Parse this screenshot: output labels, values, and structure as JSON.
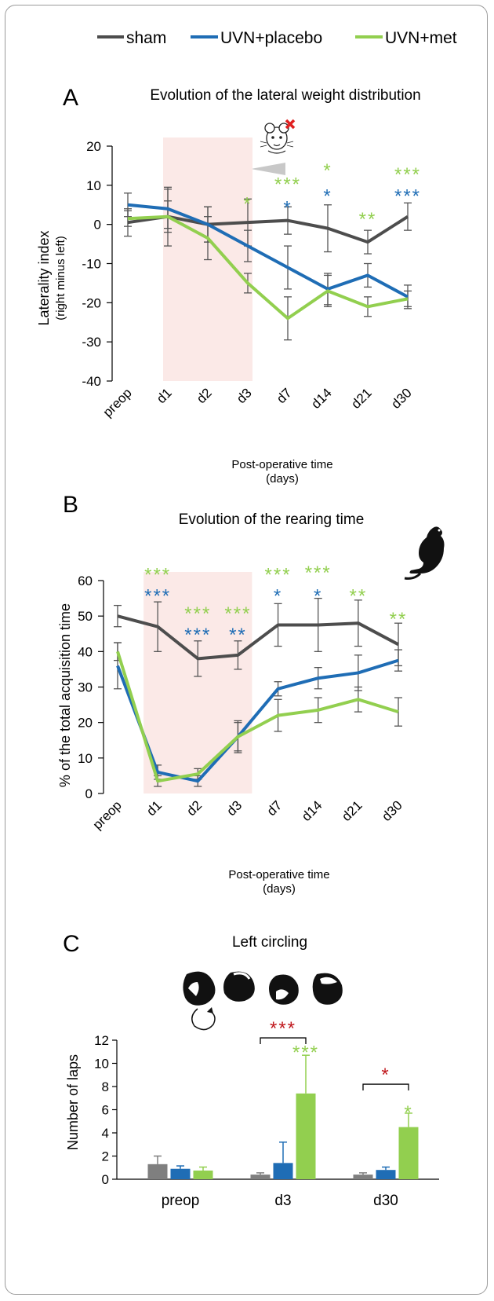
{
  "colors": {
    "sham": "#4d4d4d",
    "placebo": "#1f6db5",
    "met": "#92cf4f",
    "red_star": "#c0191e",
    "shade": "#fbe9e7"
  },
  "legend": [
    {
      "key": "sham",
      "label": "sham"
    },
    {
      "key": "placebo",
      "label": "UVN+placebo"
    },
    {
      "key": "met",
      "label": "UVN+met"
    }
  ],
  "chart_data": [
    {
      "id": "A",
      "type": "line",
      "panel": "A",
      "title": "Evolution of the lateral weight distribution",
      "ylabel": "Laterality index",
      "ylabel_sub": "(right minus left)",
      "xlabel": "Post-operative time",
      "xlabel_sub": "(days)",
      "categories": [
        "preop",
        "d1",
        "d2",
        "d3",
        "d7",
        "d14",
        "d21",
        "d30"
      ],
      "ylim": [
        -40,
        20
      ],
      "yticks": [
        20,
        10,
        0,
        -10,
        -20,
        -30,
        -40
      ],
      "shaded_range": [
        "d1",
        "d3"
      ],
      "series": [
        {
          "key": "sham",
          "name": "sham",
          "values": [
            0.5,
            2,
            0,
            0.5,
            1,
            -1,
            -4.5,
            2
          ],
          "err": [
            3.5,
            7.5,
            4.5,
            6,
            3.5,
            6,
            3,
            3.5
          ]
        },
        {
          "key": "placebo",
          "name": "UVN+placebo",
          "values": [
            5,
            4,
            0,
            -5.5,
            -11,
            -16.5,
            -13,
            -18.5
          ],
          "err": [
            3,
            5,
            4.5,
            4,
            5.5,
            4,
            3,
            3
          ]
        },
        {
          "key": "met",
          "name": "UVN+met",
          "values": [
            1.5,
            2,
            -3.5,
            -15,
            -24,
            -17,
            -21,
            -19
          ],
          "err": [
            2,
            4,
            5.5,
            2.5,
            5.5,
            4,
            2.5,
            2
          ]
        }
      ],
      "annotations": [
        {
          "cat": "d3",
          "key": "met",
          "stars": "*",
          "value": 6.5
        },
        {
          "cat": "d7",
          "key": "met",
          "stars": "***",
          "value": 11.5
        },
        {
          "cat": "d7",
          "key": "placebo",
          "stars": "*",
          "value": 5.5
        },
        {
          "cat": "d14",
          "key": "met",
          "stars": "*",
          "value": 15
        },
        {
          "cat": "d14",
          "key": "placebo",
          "stars": "*",
          "value": 8.5
        },
        {
          "cat": "d21",
          "key": "met",
          "stars": "**",
          "value": 2.5
        },
        {
          "cat": "d30",
          "key": "met",
          "stars": "***",
          "value": 14
        },
        {
          "cat": "d30",
          "key": "placebo",
          "stars": "***",
          "value": 8.5
        }
      ]
    },
    {
      "id": "B",
      "type": "line",
      "panel": "B",
      "title": "Evolution of the rearing time",
      "ylabel": "% of the total acquisition time",
      "xlabel": "Post-operative time",
      "xlabel_sub": "(days)",
      "categories": [
        "preop",
        "d1",
        "d2",
        "d3",
        "d7",
        "d14",
        "d21",
        "d30"
      ],
      "ylim": [
        0,
        60
      ],
      "yticks": [
        60,
        50,
        40,
        30,
        20,
        10,
        0
      ],
      "shaded_range": [
        "d1",
        "d3"
      ],
      "series": [
        {
          "key": "sham",
          "name": "sham",
          "values": [
            50,
            47,
            38,
            39,
            47.5,
            47.5,
            48,
            42
          ],
          "err": [
            3,
            7,
            5,
            4,
            6,
            7.5,
            6.5,
            6
          ]
        },
        {
          "key": "placebo",
          "name": "UVN+placebo",
          "values": [
            36,
            6,
            3.5,
            16,
            29.5,
            32.5,
            34,
            37.5
          ],
          "err": [
            6.5,
            2,
            1.5,
            4.5,
            2,
            3,
            5,
            3
          ]
        },
        {
          "key": "met",
          "name": "UVN+met",
          "values": [
            40,
            3.5,
            5.5,
            16,
            22,
            23.5,
            26.5,
            23
          ],
          "err": [
            2.5,
            1.5,
            1.5,
            4,
            4.5,
            3.5,
            3.5,
            4
          ]
        }
      ],
      "annotations": [
        {
          "cat": "d1",
          "key": "met",
          "stars": "***",
          "value": 63
        },
        {
          "cat": "d1",
          "key": "placebo",
          "stars": "***",
          "value": 57
        },
        {
          "cat": "d2",
          "key": "met",
          "stars": "***",
          "value": 52
        },
        {
          "cat": "d2",
          "key": "placebo",
          "stars": "***",
          "value": 46
        },
        {
          "cat": "d3",
          "key": "met",
          "stars": "***",
          "value": 52
        },
        {
          "cat": "d3",
          "key": "placebo",
          "stars": "**",
          "value": 46
        },
        {
          "cat": "d7",
          "key": "met",
          "stars": "***",
          "value": 63
        },
        {
          "cat": "d7",
          "key": "placebo",
          "stars": "*",
          "value": 57
        },
        {
          "cat": "d14",
          "key": "met",
          "stars": "***",
          "value": 63.5
        },
        {
          "cat": "d14",
          "key": "placebo",
          "stars": "*",
          "value": 57
        },
        {
          "cat": "d21",
          "key": "met",
          "stars": "**",
          "value": 57
        },
        {
          "cat": "d30",
          "key": "met",
          "stars": "**",
          "value": 50.5
        }
      ]
    },
    {
      "id": "C",
      "type": "bar",
      "panel": "C",
      "title": "Left circling",
      "ylabel": "Number of laps",
      "categories": [
        "preop",
        "d3",
        "d30"
      ],
      "ylim": [
        0,
        12
      ],
      "yticks": [
        12,
        10,
        8,
        6,
        4,
        2,
        0
      ],
      "series": [
        {
          "key": "sham",
          "name": "sham",
          "values": [
            1.3,
            0.4,
            0.4
          ],
          "err": [
            0.7,
            0.15,
            0.15
          ]
        },
        {
          "key": "placebo",
          "name": "UVN+placebo",
          "values": [
            0.9,
            1.4,
            0.8
          ],
          "err": [
            0.25,
            1.8,
            0.25
          ]
        },
        {
          "key": "met",
          "name": "UVN+met",
          "values": [
            0.75,
            7.4,
            4.5
          ],
          "err": [
            0.3,
            3.3,
            1.2
          ]
        }
      ],
      "brackets": [
        {
          "cat": "d3",
          "stars": "***",
          "value": 12.2
        },
        {
          "cat": "d30",
          "stars": "*",
          "value": 8.2
        }
      ],
      "annotations": [
        {
          "cat": "d3",
          "key": "met",
          "stars": "***",
          "value": 11.1
        },
        {
          "cat": "d30",
          "key": "met",
          "stars": "*",
          "value": 5.9
        }
      ]
    }
  ]
}
